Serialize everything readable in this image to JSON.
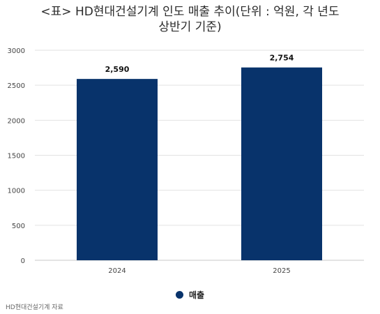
{
  "chart_data": {
    "type": "bar",
    "title_lines": [
      "<표> HD현대건설기계 인도 매출 추이(단위 : 억원, 각 년도",
      "상반기 기준)"
    ],
    "categories": [
      "2024",
      "2025"
    ],
    "series": [
      {
        "name": "매출",
        "values": [
          2590,
          2754
        ],
        "labels": [
          "2,590",
          "2,754"
        ]
      }
    ],
    "ylim": [
      0,
      3000
    ],
    "yticks": [
      0,
      500,
      1000,
      1500,
      2000,
      2500,
      3000
    ],
    "grid": true,
    "legend": "bottom",
    "colors": {
      "bar": "#08336b",
      "grid": "#e2e2e2",
      "axis": "#c8c8c8"
    }
  },
  "source": "HD현대건설기계 자료"
}
